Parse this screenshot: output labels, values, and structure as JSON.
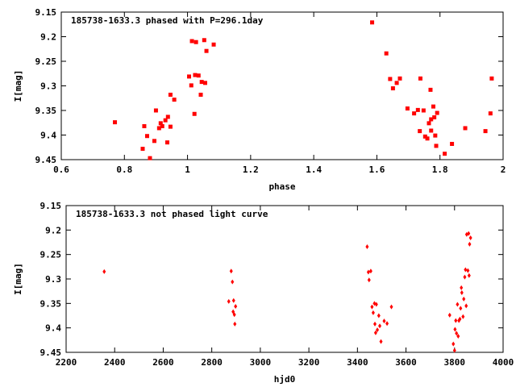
{
  "chart_data": [
    {
      "type": "scatter",
      "title": "185738-1633.3 phased with P=296.1day",
      "xlabel": "phase",
      "ylabel": "I[mag]",
      "xlim": [
        0.6,
        2
      ],
      "ylim": [
        9.45,
        9.15
      ],
      "y_inverted": true,
      "grid": false,
      "xticks": [
        "0.6",
        "0.8",
        "1",
        "1.2",
        "1.4",
        "1.6",
        "1.8",
        "2"
      ],
      "yticks": [
        "9.15",
        "9.2",
        "9.25",
        "9.3",
        "9.35",
        "9.4",
        "9.45"
      ],
      "color": "#ff0000",
      "marker": "square",
      "points": [
        [
          0.77,
          9.374
        ],
        [
          0.858,
          9.428
        ],
        [
          0.863,
          9.382
        ],
        [
          0.872,
          9.402
        ],
        [
          0.881,
          9.447
        ],
        [
          0.895,
          9.412
        ],
        [
          0.9,
          9.35
        ],
        [
          0.91,
          9.386
        ],
        [
          0.915,
          9.376
        ],
        [
          0.92,
          9.382
        ],
        [
          0.93,
          9.37
        ],
        [
          0.936,
          9.415
        ],
        [
          0.938,
          9.363
        ],
        [
          0.946,
          9.383
        ],
        [
          0.946,
          9.318
        ],
        [
          0.958,
          9.328
        ],
        [
          1.005,
          9.281
        ],
        [
          1.012,
          9.299
        ],
        [
          1.014,
          9.209
        ],
        [
          1.022,
          9.357
        ],
        [
          1.024,
          9.278
        ],
        [
          1.027,
          9.211
        ],
        [
          1.035,
          9.279
        ],
        [
          1.042,
          9.318
        ],
        [
          1.045,
          9.292
        ],
        [
          1.053,
          9.207
        ],
        [
          1.056,
          9.294
        ],
        [
          1.06,
          9.229
        ],
        [
          1.083,
          9.216
        ],
        [
          1.585,
          9.171
        ],
        [
          1.63,
          9.234
        ],
        [
          1.642,
          9.286
        ],
        [
          1.651,
          9.305
        ],
        [
          1.663,
          9.294
        ],
        [
          1.673,
          9.285
        ],
        [
          1.697,
          9.346
        ],
        [
          1.718,
          9.356
        ],
        [
          1.73,
          9.349
        ],
        [
          1.736,
          9.392
        ],
        [
          1.738,
          9.285
        ],
        [
          1.748,
          9.35
        ],
        [
          1.753,
          9.403
        ],
        [
          1.76,
          9.407
        ],
        [
          1.765,
          9.376
        ],
        [
          1.77,
          9.308
        ],
        [
          1.772,
          9.368
        ],
        [
          1.772,
          9.391
        ],
        [
          1.779,
          9.342
        ],
        [
          1.782,
          9.364
        ],
        [
          1.785,
          9.401
        ],
        [
          1.788,
          9.422
        ],
        [
          1.791,
          9.355
        ],
        [
          1.815,
          9.438
        ],
        [
          1.838,
          9.418
        ],
        [
          1.88,
          9.386
        ],
        [
          1.944,
          9.392
        ],
        [
          1.96,
          9.356
        ],
        [
          1.964,
          9.285
        ]
      ]
    },
    {
      "type": "scatter",
      "title": "185738-1633.3 not phased light curve",
      "xlabel": "hjd0",
      "ylabel": "I[mag]",
      "xlim": [
        2200,
        4000
      ],
      "ylim": [
        9.45,
        9.15
      ],
      "y_inverted": true,
      "grid": false,
      "xticks": [
        "2200",
        "2400",
        "2600",
        "2800",
        "3000",
        "3200",
        "3400",
        "3600",
        "3800",
        "4000"
      ],
      "yticks": [
        "9.15",
        "9.2",
        "9.25",
        "9.3",
        "9.35",
        "9.4",
        "9.45"
      ],
      "color": "#ff0000",
      "marker": "diamond",
      "points": [
        [
          2357,
          9.285
        ],
        [
          2870,
          9.346
        ],
        [
          2880,
          9.284
        ],
        [
          2885,
          9.306
        ],
        [
          2888,
          9.367
        ],
        [
          2890,
          9.344
        ],
        [
          2893,
          9.373
        ],
        [
          2895,
          9.392
        ],
        [
          2898,
          9.356
        ],
        [
          3440,
          9.234
        ],
        [
          3445,
          9.286
        ],
        [
          3448,
          9.302
        ],
        [
          3455,
          9.284
        ],
        [
          3460,
          9.357
        ],
        [
          3465,
          9.369
        ],
        [
          3470,
          9.35
        ],
        [
          3472,
          9.392
        ],
        [
          3475,
          9.41
        ],
        [
          3478,
          9.352
        ],
        [
          3482,
          9.404
        ],
        [
          3488,
          9.375
        ],
        [
          3492,
          9.396
        ],
        [
          3497,
          9.428
        ],
        [
          3510,
          9.386
        ],
        [
          3522,
          9.391
        ],
        [
          3540,
          9.357
        ],
        [
          3780,
          9.374
        ],
        [
          3795,
          9.433
        ],
        [
          3800,
          9.446
        ],
        [
          3802,
          9.403
        ],
        [
          3805,
          9.385
        ],
        [
          3808,
          9.411
        ],
        [
          3812,
          9.352
        ],
        [
          3815,
          9.417
        ],
        [
          3818,
          9.385
        ],
        [
          3822,
          9.382
        ],
        [
          3825,
          9.36
        ],
        [
          3828,
          9.318
        ],
        [
          3830,
          9.328
        ],
        [
          3835,
          9.377
        ],
        [
          3838,
          9.341
        ],
        [
          3842,
          9.296
        ],
        [
          3845,
          9.281
        ],
        [
          3848,
          9.355
        ],
        [
          3850,
          9.209
        ],
        [
          3855,
          9.283
        ],
        [
          3858,
          9.207
        ],
        [
          3860,
          9.293
        ],
        [
          3862,
          9.229
        ],
        [
          3866,
          9.216
        ]
      ]
    }
  ]
}
